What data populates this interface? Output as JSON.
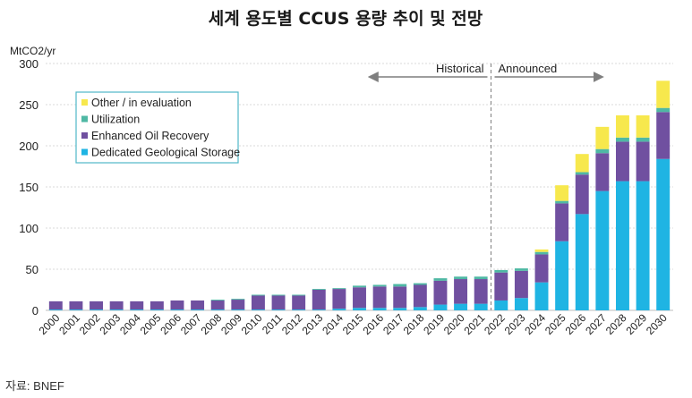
{
  "chart_data": {
    "type": "bar",
    "stacked": true,
    "title": "세계 용도별 CCUS 용량 추이 및 전망",
    "ylabel": "MtCO2/yr",
    "ylim": [
      0,
      300
    ],
    "yticks": [
      0,
      50,
      100,
      150,
      200,
      250,
      300
    ],
    "grid": true,
    "legend_placement": "top-left",
    "categories": [
      "2000",
      "2001",
      "2002",
      "2003",
      "2004",
      "2005",
      "2006",
      "2007",
      "2008",
      "2009",
      "2010",
      "2011",
      "2012",
      "2013",
      "2014",
      "2015",
      "2016",
      "2017",
      "2018",
      "2019",
      "2020",
      "2021",
      "2022",
      "2023",
      "2024",
      "2025",
      "2026",
      "2027",
      "2028",
      "2029",
      "2030"
    ],
    "series": [
      {
        "name": "Dedicated Geological Storage",
        "color": "#1fb4e3",
        "values": [
          1,
          1,
          1,
          1,
          1,
          1,
          1,
          1,
          1,
          1,
          1,
          1,
          1,
          1,
          2,
          3,
          3,
          3,
          4,
          7,
          8,
          8,
          12,
          15,
          34,
          84,
          117,
          145,
          157,
          157,
          184
        ]
      },
      {
        "name": "Enhanced Oil Recovery",
        "color": "#7050a0",
        "values": [
          10,
          10,
          10,
          10,
          10,
          10,
          11,
          11,
          11,
          12,
          17,
          17,
          17,
          24,
          24,
          25,
          26,
          26,
          27,
          29,
          30,
          30,
          34,
          33,
          34,
          46,
          48,
          46,
          48,
          48,
          57
        ]
      },
      {
        "name": "Utilization",
        "color": "#4fb8a4",
        "values": [
          0,
          0,
          0,
          0,
          0,
          0,
          0,
          0,
          1,
          1,
          1,
          1,
          1,
          1,
          1,
          2,
          2,
          3,
          2,
          3,
          3,
          3,
          3,
          3,
          3,
          3,
          3,
          5,
          5,
          5,
          5
        ]
      },
      {
        "name": "Other / in evaluation",
        "color": "#f7e84d",
        "values": [
          0,
          0,
          0,
          0,
          0,
          0,
          0,
          0,
          0,
          0,
          0,
          0,
          0,
          0,
          0,
          0,
          0,
          0,
          0,
          0,
          0,
          0,
          0,
          0,
          3,
          19,
          22,
          27,
          27,
          27,
          33
        ]
      }
    ],
    "annotations": [
      {
        "text": "Historical",
        "from": "2016",
        "to": "2022"
      },
      {
        "text": "Announced",
        "from": "2022",
        "to": "2027"
      }
    ]
  },
  "source_note": "자료: BNEF"
}
